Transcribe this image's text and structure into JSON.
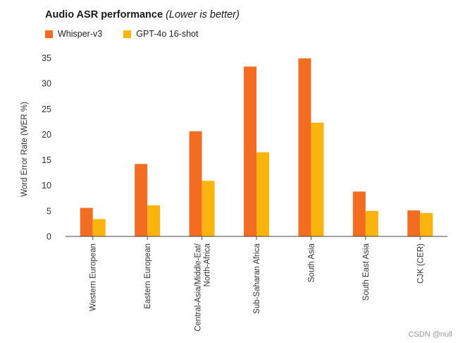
{
  "chart_data": {
    "type": "bar",
    "title": "Audio ASR performance",
    "subtitle": "(Lower is better)",
    "xlabel": "",
    "ylabel": "Word Error Rate (WER %)",
    "ylim": [
      0,
      35
    ],
    "yticks": [
      "0",
      "5",
      "10",
      "15",
      "20",
      "25",
      "30",
      "35"
    ],
    "grid": false,
    "legend_position": "top-left",
    "categories": [
      "Western European",
      "Eastern European",
      "Central-Asia/Middle-Eat/ North-Africa",
      "Sub-Saharan Africa",
      "South Asia",
      "South East Asia",
      "CJK (CER)"
    ],
    "series": [
      {
        "name": "Whisper-v3",
        "color": "#f26d21",
        "values": [
          5.6,
          14.2,
          20.6,
          33.3,
          34.9,
          8.8,
          5.1
        ]
      },
      {
        "name": "GPT-4o 16-shot",
        "color": "#fbb40e",
        "values": [
          3.4,
          6.1,
          10.9,
          16.5,
          22.3,
          5.0,
          4.6
        ]
      }
    ]
  },
  "watermark": "CSDN @null"
}
